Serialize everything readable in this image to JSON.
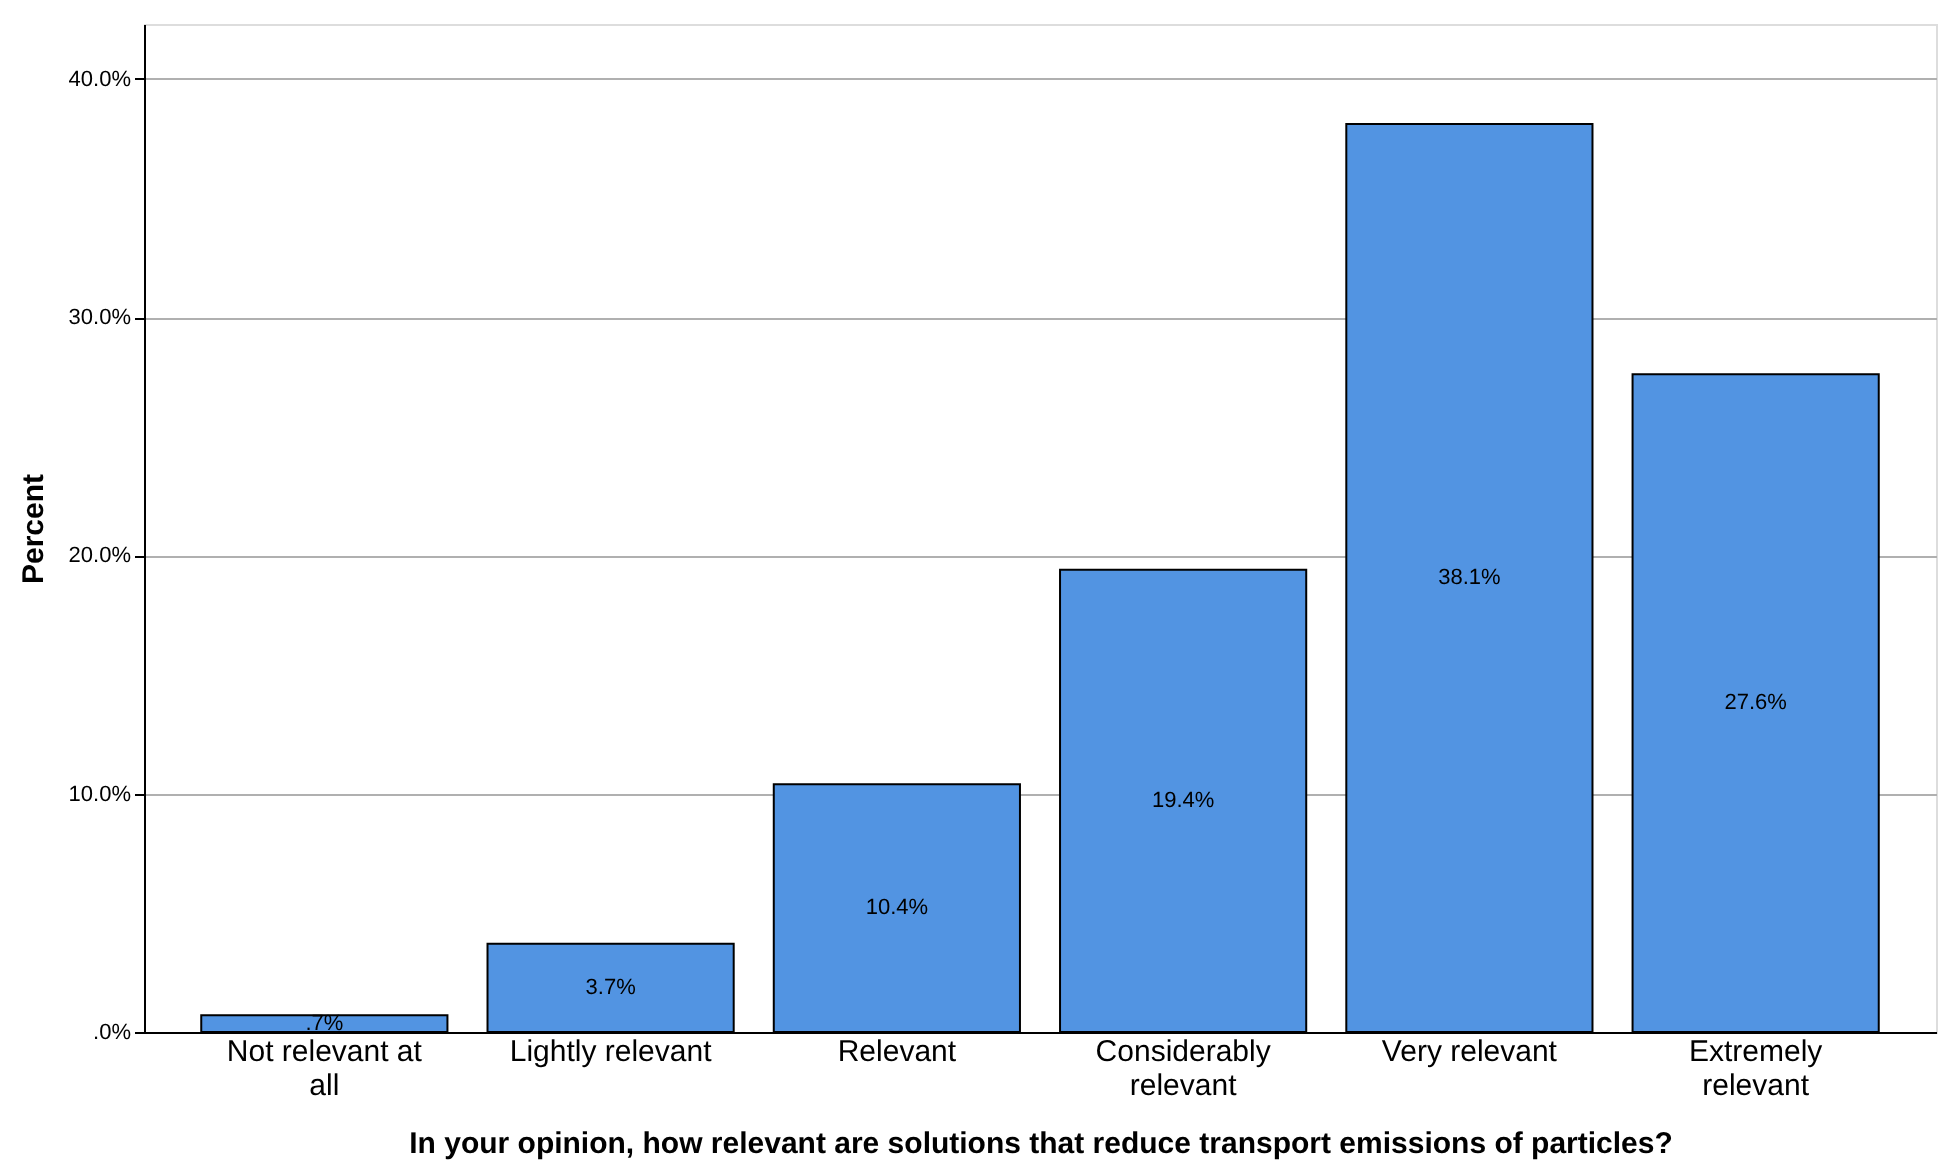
{
  "chart_data": {
    "type": "bar",
    "xlabel": "In your opinion, how relevant are solutions that reduce transport emissions of particles?",
    "ylabel": "Percent",
    "categories": [
      "Not relevant at all",
      "Lightly relevant",
      "Relevant",
      "Considerably relevant",
      "Very relevant",
      "Extremely relevant"
    ],
    "values": [
      0.7,
      3.7,
      10.4,
      19.4,
      38.1,
      27.6
    ],
    "value_labels": [
      ".7%",
      "3.7%",
      "10.4%",
      "19.4%",
      "38.1%",
      "27.6%"
    ],
    "color": "#5294e2",
    "ylim": [
      0,
      42.3
    ],
    "yticks": [
      {
        "value": 0,
        "label": ".0%"
      },
      {
        "value": 10,
        "label": "10.0%"
      },
      {
        "value": 20,
        "label": "20.0%"
      },
      {
        "value": 30,
        "label": "30.0%"
      },
      {
        "value": 40,
        "label": "40.0%"
      }
    ],
    "grid": "y"
  }
}
